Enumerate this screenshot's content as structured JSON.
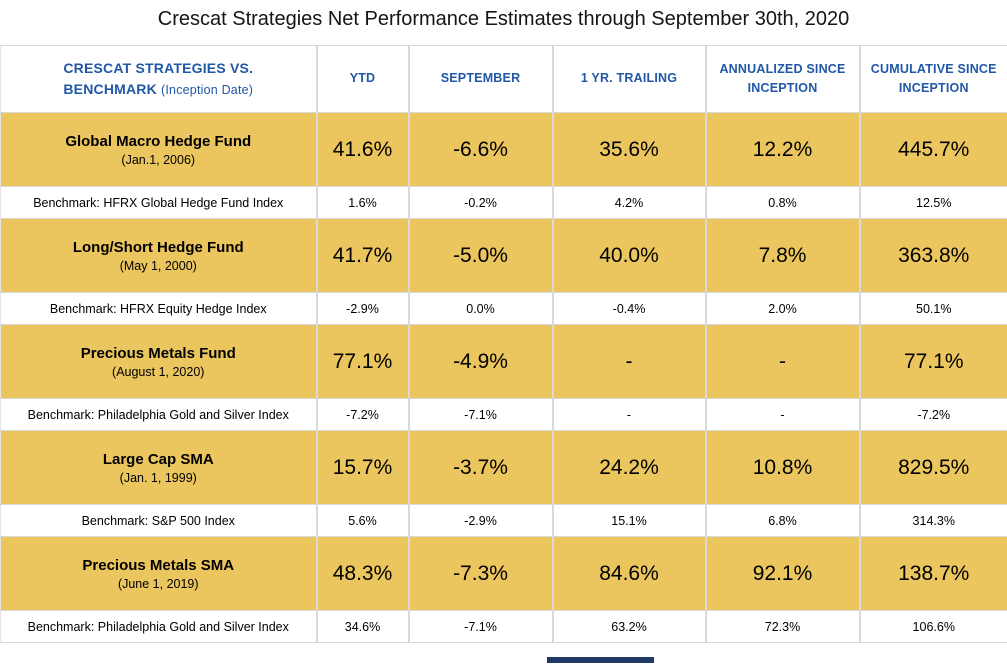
{
  "title": "Crescat Strategies Net Performance Estimates through September 30th, 2020",
  "table": {
    "header": {
      "col1_bold": "CRESCAT STRATEGIES VS. BENCHMARK",
      "col1_note": "(Inception Date)",
      "columns": [
        "YTD",
        "SEPTEMBER",
        "1 YR. TRAILING",
        "ANNUALIZED SINCE INCEPTION",
        "CUMULATIVE SINCE INCEPTION"
      ]
    },
    "rows": [
      {
        "type": "fund",
        "name": "Global Macro Hedge Fund",
        "inception": "(Jan.1, 2006)",
        "values": [
          "41.6%",
          "-6.6%",
          "35.6%",
          "12.2%",
          "445.7%"
        ]
      },
      {
        "type": "benchmark",
        "name": "Benchmark: HFRX Global Hedge Fund Index",
        "values": [
          "1.6%",
          "-0.2%",
          "4.2%",
          "0.8%",
          "12.5%"
        ]
      },
      {
        "type": "fund",
        "name": "Long/Short Hedge Fund",
        "inception": "(May 1, 2000)",
        "values": [
          "41.7%",
          "-5.0%",
          "40.0%",
          "7.8%",
          "363.8%"
        ]
      },
      {
        "type": "benchmark",
        "name": "Benchmark: HFRX Equity Hedge Index",
        "values": [
          "-2.9%",
          "0.0%",
          "-0.4%",
          "2.0%",
          "50.1%"
        ]
      },
      {
        "type": "fund",
        "name": "Precious Metals Fund",
        "inception": "(August 1, 2020)",
        "values": [
          "77.1%",
          "-4.9%",
          "-",
          "-",
          "77.1%"
        ]
      },
      {
        "type": "benchmark",
        "name": "Benchmark: Philadelphia Gold and Silver Index",
        "values": [
          "-7.2%",
          "-7.1%",
          "-",
          "-",
          "-7.2%"
        ]
      },
      {
        "type": "fund",
        "name": "Large Cap SMA",
        "inception": "(Jan. 1, 1999)",
        "values": [
          "15.7%",
          "-3.7%",
          "24.2%",
          "10.8%",
          "829.5%"
        ]
      },
      {
        "type": "benchmark",
        "name": "Benchmark: S&P 500 Index",
        "values": [
          "5.6%",
          "-2.9%",
          "15.1%",
          "6.8%",
          "314.3%"
        ]
      },
      {
        "type": "fund",
        "name": "Precious Metals SMA",
        "inception": "(June 1, 2019)",
        "values": [
          "48.3%",
          "-7.3%",
          "84.6%",
          "92.1%",
          "138.7%"
        ]
      },
      {
        "type": "benchmark",
        "name": "Benchmark: Philadelphia Gold and Silver Index",
        "values": [
          "34.6%",
          "-7.1%",
          "63.2%",
          "72.3%",
          "106.6%"
        ]
      }
    ]
  },
  "colors": {
    "row_gold": "#ebc55d",
    "header_blue": "#2057a7",
    "border_gray": "#d9d9d9",
    "bottom_bar_navy": "#203864",
    "text_black": "#000000"
  },
  "chart_data": {
    "type": "table",
    "title": "Crescat Strategies Net Performance Estimates through September 30th, 2020",
    "columns": [
      "Crescat Strategies vs. Benchmark (Inception Date)",
      "YTD",
      "September",
      "1 Yr. Trailing",
      "Annualized Since Inception",
      "Cumulative Since Inception"
    ],
    "rows": [
      [
        "Global Macro Hedge Fund (Jan.1, 2006)",
        "41.6%",
        "-6.6%",
        "35.6%",
        "12.2%",
        "445.7%"
      ],
      [
        "Benchmark: HFRX Global Hedge Fund Index",
        "1.6%",
        "-0.2%",
        "4.2%",
        "0.8%",
        "12.5%"
      ],
      [
        "Long/Short Hedge Fund (May 1, 2000)",
        "41.7%",
        "-5.0%",
        "40.0%",
        "7.8%",
        "363.8%"
      ],
      [
        "Benchmark: HFRX Equity Hedge Index",
        "-2.9%",
        "0.0%",
        "-0.4%",
        "2.0%",
        "50.1%"
      ],
      [
        "Precious Metals Fund (August 1, 2020)",
        "77.1%",
        "-4.9%",
        "-",
        "-",
        "77.1%"
      ],
      [
        "Benchmark: Philadelphia Gold and Silver Index",
        "-7.2%",
        "-7.1%",
        "-",
        "-",
        "-7.2%"
      ],
      [
        "Large Cap SMA (Jan. 1, 1999)",
        "15.7%",
        "-3.7%",
        "24.2%",
        "10.8%",
        "829.5%"
      ],
      [
        "Benchmark: S&P 500 Index",
        "5.6%",
        "-2.9%",
        "15.1%",
        "6.8%",
        "314.3%"
      ],
      [
        "Precious Metals SMA (June 1, 2019)",
        "48.3%",
        "-7.3%",
        "84.6%",
        "92.1%",
        "138.7%"
      ],
      [
        "Benchmark: Philadelphia Gold and Silver Index",
        "34.6%",
        "-7.1%",
        "63.2%",
        "72.3%",
        "106.6%"
      ]
    ]
  }
}
